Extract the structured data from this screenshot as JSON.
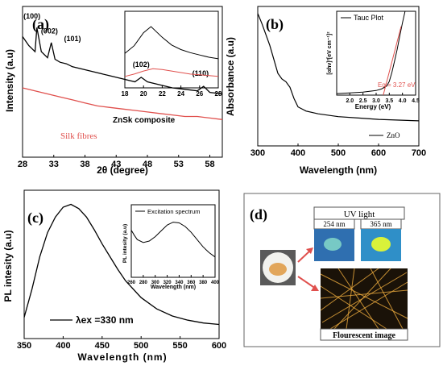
{
  "chart_data": [
    {
      "panel": "(a)",
      "type": "line",
      "xlabel": "2θ (degree)",
      "ylabel": "Intensity (a.u)",
      "xlim": [
        28,
        60
      ],
      "xticks": [
        28,
        33,
        38,
        43,
        48,
        53,
        58
      ],
      "series": [
        {
          "name": "ZnSk composite",
          "color": "#000000",
          "x": [
            28,
            29,
            30,
            30.3,
            31,
            32,
            32.6,
            33.2,
            34,
            35,
            36,
            38,
            40,
            42,
            44,
            46,
            47,
            48,
            50,
            52,
            54,
            56,
            57,
            58,
            60
          ],
          "y": [
            0.8,
            0.74,
            0.7,
            0.86,
            0.7,
            0.66,
            0.76,
            0.65,
            0.63,
            0.62,
            0.6,
            0.58,
            0.56,
            0.54,
            0.52,
            0.5,
            0.53,
            0.5,
            0.48,
            0.46,
            0.45,
            0.44,
            0.47,
            0.43,
            0.42
          ]
        },
        {
          "name": "Silk fibres",
          "color": "#e0504d",
          "x": [
            28,
            30,
            32,
            34,
            36,
            38,
            40,
            42,
            44,
            46,
            48,
            50,
            52,
            54,
            56,
            58,
            60
          ],
          "y": [
            0.46,
            0.44,
            0.42,
            0.4,
            0.38,
            0.36,
            0.34,
            0.33,
            0.32,
            0.31,
            0.3,
            0.29,
            0.28,
            0.27,
            0.27,
            0.26,
            0.25
          ]
        }
      ],
      "peak_labels": [
        {
          "text": "(100)",
          "x": 29.5,
          "y": 0.92
        },
        {
          "text": "(002)",
          "x": 32.3,
          "y": 0.82
        },
        {
          "text": "(101)",
          "x": 36,
          "y": 0.77
        },
        {
          "text": "(102)",
          "x": 47,
          "y": 0.6
        },
        {
          "text": "(110)",
          "x": 56.5,
          "y": 0.54
        }
      ],
      "inset": {
        "xlim": [
          18,
          28
        ],
        "xticks": [
          18,
          20,
          22,
          24,
          26,
          28
        ],
        "series": [
          {
            "color": "#000000",
            "x": [
              18,
              19,
              20,
              20.8,
              22,
              23,
              24,
              25,
              26,
              27,
              28
            ],
            "y": [
              0.45,
              0.55,
              0.72,
              0.8,
              0.66,
              0.56,
              0.5,
              0.46,
              0.43,
              0.4,
              0.38
            ]
          },
          {
            "color": "#e0504d",
            "x": [
              18,
              19,
              20,
              21,
              22,
              23,
              24,
              25,
              26,
              27,
              28
            ],
            "y": [
              0.15,
              0.18,
              0.22,
              0.25,
              0.24,
              0.22,
              0.2,
              0.18,
              0.17,
              0.16,
              0.15
            ]
          }
        ]
      }
    },
    {
      "panel": "(b)",
      "type": "line",
      "xlabel": "Wavelength (nm)",
      "ylabel": "Absorbance (a.u)",
      "xlim": [
        300,
        700
      ],
      "xticks": [
        300,
        400,
        500,
        600,
        700
      ],
      "legend": "ZnO",
      "series": [
        {
          "name": "ZnO",
          "color": "#000000",
          "x": [
            300,
            310,
            320,
            330,
            340,
            350,
            360,
            370,
            380,
            390,
            400,
            420,
            450,
            500,
            550,
            600,
            650,
            700
          ],
          "y": [
            0.95,
            0.88,
            0.8,
            0.72,
            0.62,
            0.52,
            0.48,
            0.46,
            0.42,
            0.34,
            0.28,
            0.25,
            0.23,
            0.21,
            0.2,
            0.19,
            0.185,
            0.18
          ]
        }
      ],
      "inset": {
        "title": "Tauc Plot",
        "xlabel": "Energy (eV)",
        "ylabel": "[αhν]²[eV cm⁻¹]²",
        "annotation": "Eg = 3.27 eV",
        "xlim": [
          1.5,
          4.5
        ],
        "xticks": [
          2.0,
          2.5,
          3.0,
          3.5,
          4.0,
          4.5
        ],
        "series": [
          {
            "color": "#000000",
            "x": [
              1.5,
              2.0,
              2.5,
              3.0,
              3.2,
              3.4,
              3.5,
              3.6,
              3.7,
              3.8,
              3.9,
              4.0,
              4.1
            ],
            "y": [
              0.02,
              0.03,
              0.04,
              0.06,
              0.08,
              0.12,
              0.18,
              0.3,
              0.45,
              0.6,
              0.78,
              0.95,
              1.1
            ]
          },
          {
            "color": "#e0504d",
            "x": [
              3.27,
              3.95
            ],
            "y": [
              0.0,
              0.9
            ]
          }
        ]
      }
    },
    {
      "panel": "(c)",
      "type": "line",
      "xlabel": "Wavelength (nm)",
      "ylabel": "PL intesity (a.u)",
      "xlim": [
        350,
        600
      ],
      "xticks": [
        350,
        400,
        450,
        500,
        550,
        600
      ],
      "legend": "λex =330 nm",
      "series": [
        {
          "name": "λex =330 nm",
          "color": "#000000",
          "x": [
            350,
            360,
            370,
            380,
            390,
            400,
            410,
            420,
            430,
            440,
            450,
            460,
            470,
            480,
            500,
            520,
            540,
            560,
            580,
            600
          ],
          "y": [
            0.15,
            0.35,
            0.58,
            0.75,
            0.86,
            0.93,
            0.95,
            0.92,
            0.86,
            0.77,
            0.67,
            0.58,
            0.49,
            0.41,
            0.29,
            0.21,
            0.16,
            0.13,
            0.11,
            0.1
          ]
        }
      ],
      "inset": {
        "title": "Excitation spectrum",
        "xlabel": "Wavelength (nm)",
        "ylabel": "PL intesity (a.u)",
        "xlim": [
          260,
          400
        ],
        "xticks": [
          260,
          280,
          300,
          320,
          340,
          360,
          380,
          400
        ],
        "series": [
          {
            "color": "#000000",
            "x": [
              260,
              265,
              270,
              280,
              290,
              300,
              310,
              320,
              330,
              340,
              350,
              360,
              370,
              380,
              390,
              400
            ],
            "y": [
              0.65,
              0.58,
              0.52,
              0.48,
              0.5,
              0.56,
              0.64,
              0.72,
              0.76,
              0.75,
              0.7,
              0.62,
              0.52,
              0.42,
              0.34,
              0.28
            ]
          }
        ]
      }
    }
  ],
  "panel_d": {
    "label": "(d)",
    "uv_title": "UV light",
    "uv_254": "254 nm",
    "uv_365": "365 nm",
    "fluor_caption": "Flourescent image",
    "colors": {
      "uv254_bg": "#2f6fb0",
      "uv365_bg": "#2f8fc8",
      "glow": "#d9f23a",
      "fiber": "#e0a23a",
      "arrow": "#e0504d"
    }
  }
}
